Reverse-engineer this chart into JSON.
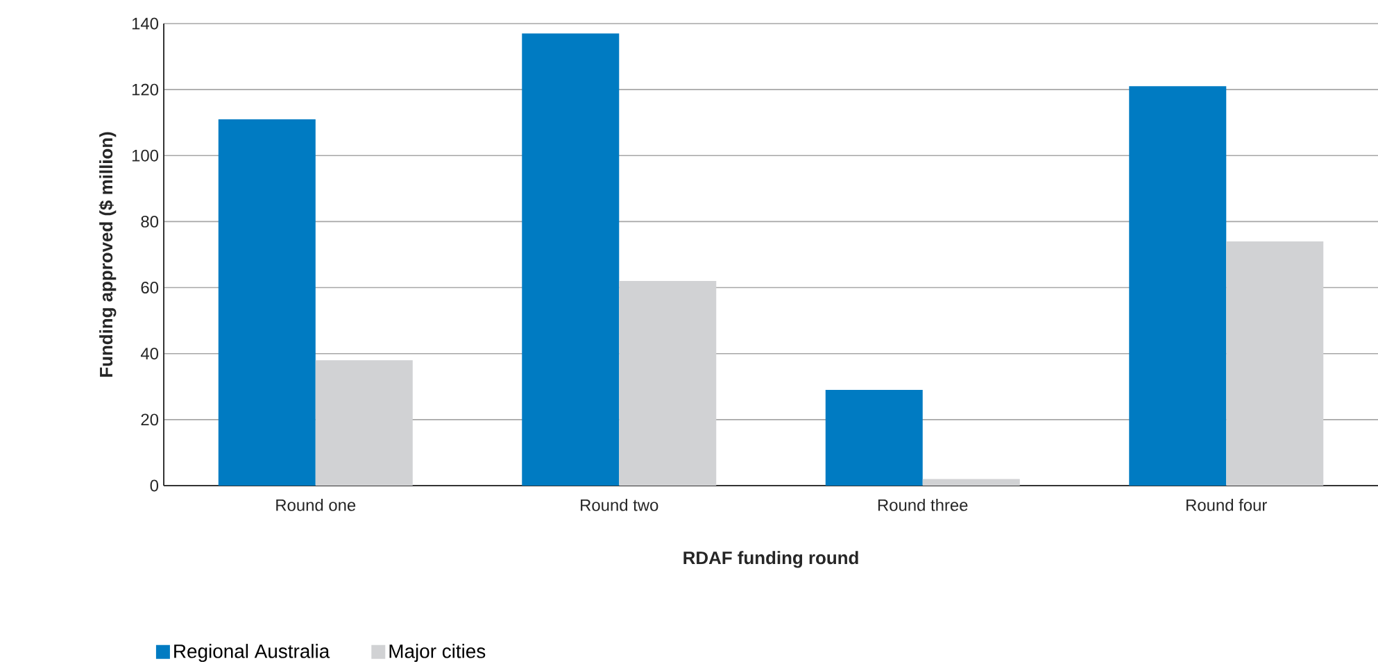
{
  "chart_data": {
    "type": "bar",
    "xlabel": "RDAF funding round",
    "ylabel": "Funding approved ($ million)",
    "categories": [
      "Round one",
      "Round two",
      "Round three",
      "Round four"
    ],
    "series": [
      {
        "name": "Regional Australia",
        "color": "#007bc2",
        "values": [
          111,
          137,
          29,
          121
        ]
      },
      {
        "name": "Major cities",
        "color": "#d1d2d4",
        "values": [
          38,
          62,
          2,
          74
        ]
      }
    ],
    "ylim": [
      0,
      140
    ],
    "yticks": [
      0,
      20,
      40,
      60,
      80,
      100,
      120,
      140
    ],
    "grid": "y",
    "legend": "bottom"
  }
}
